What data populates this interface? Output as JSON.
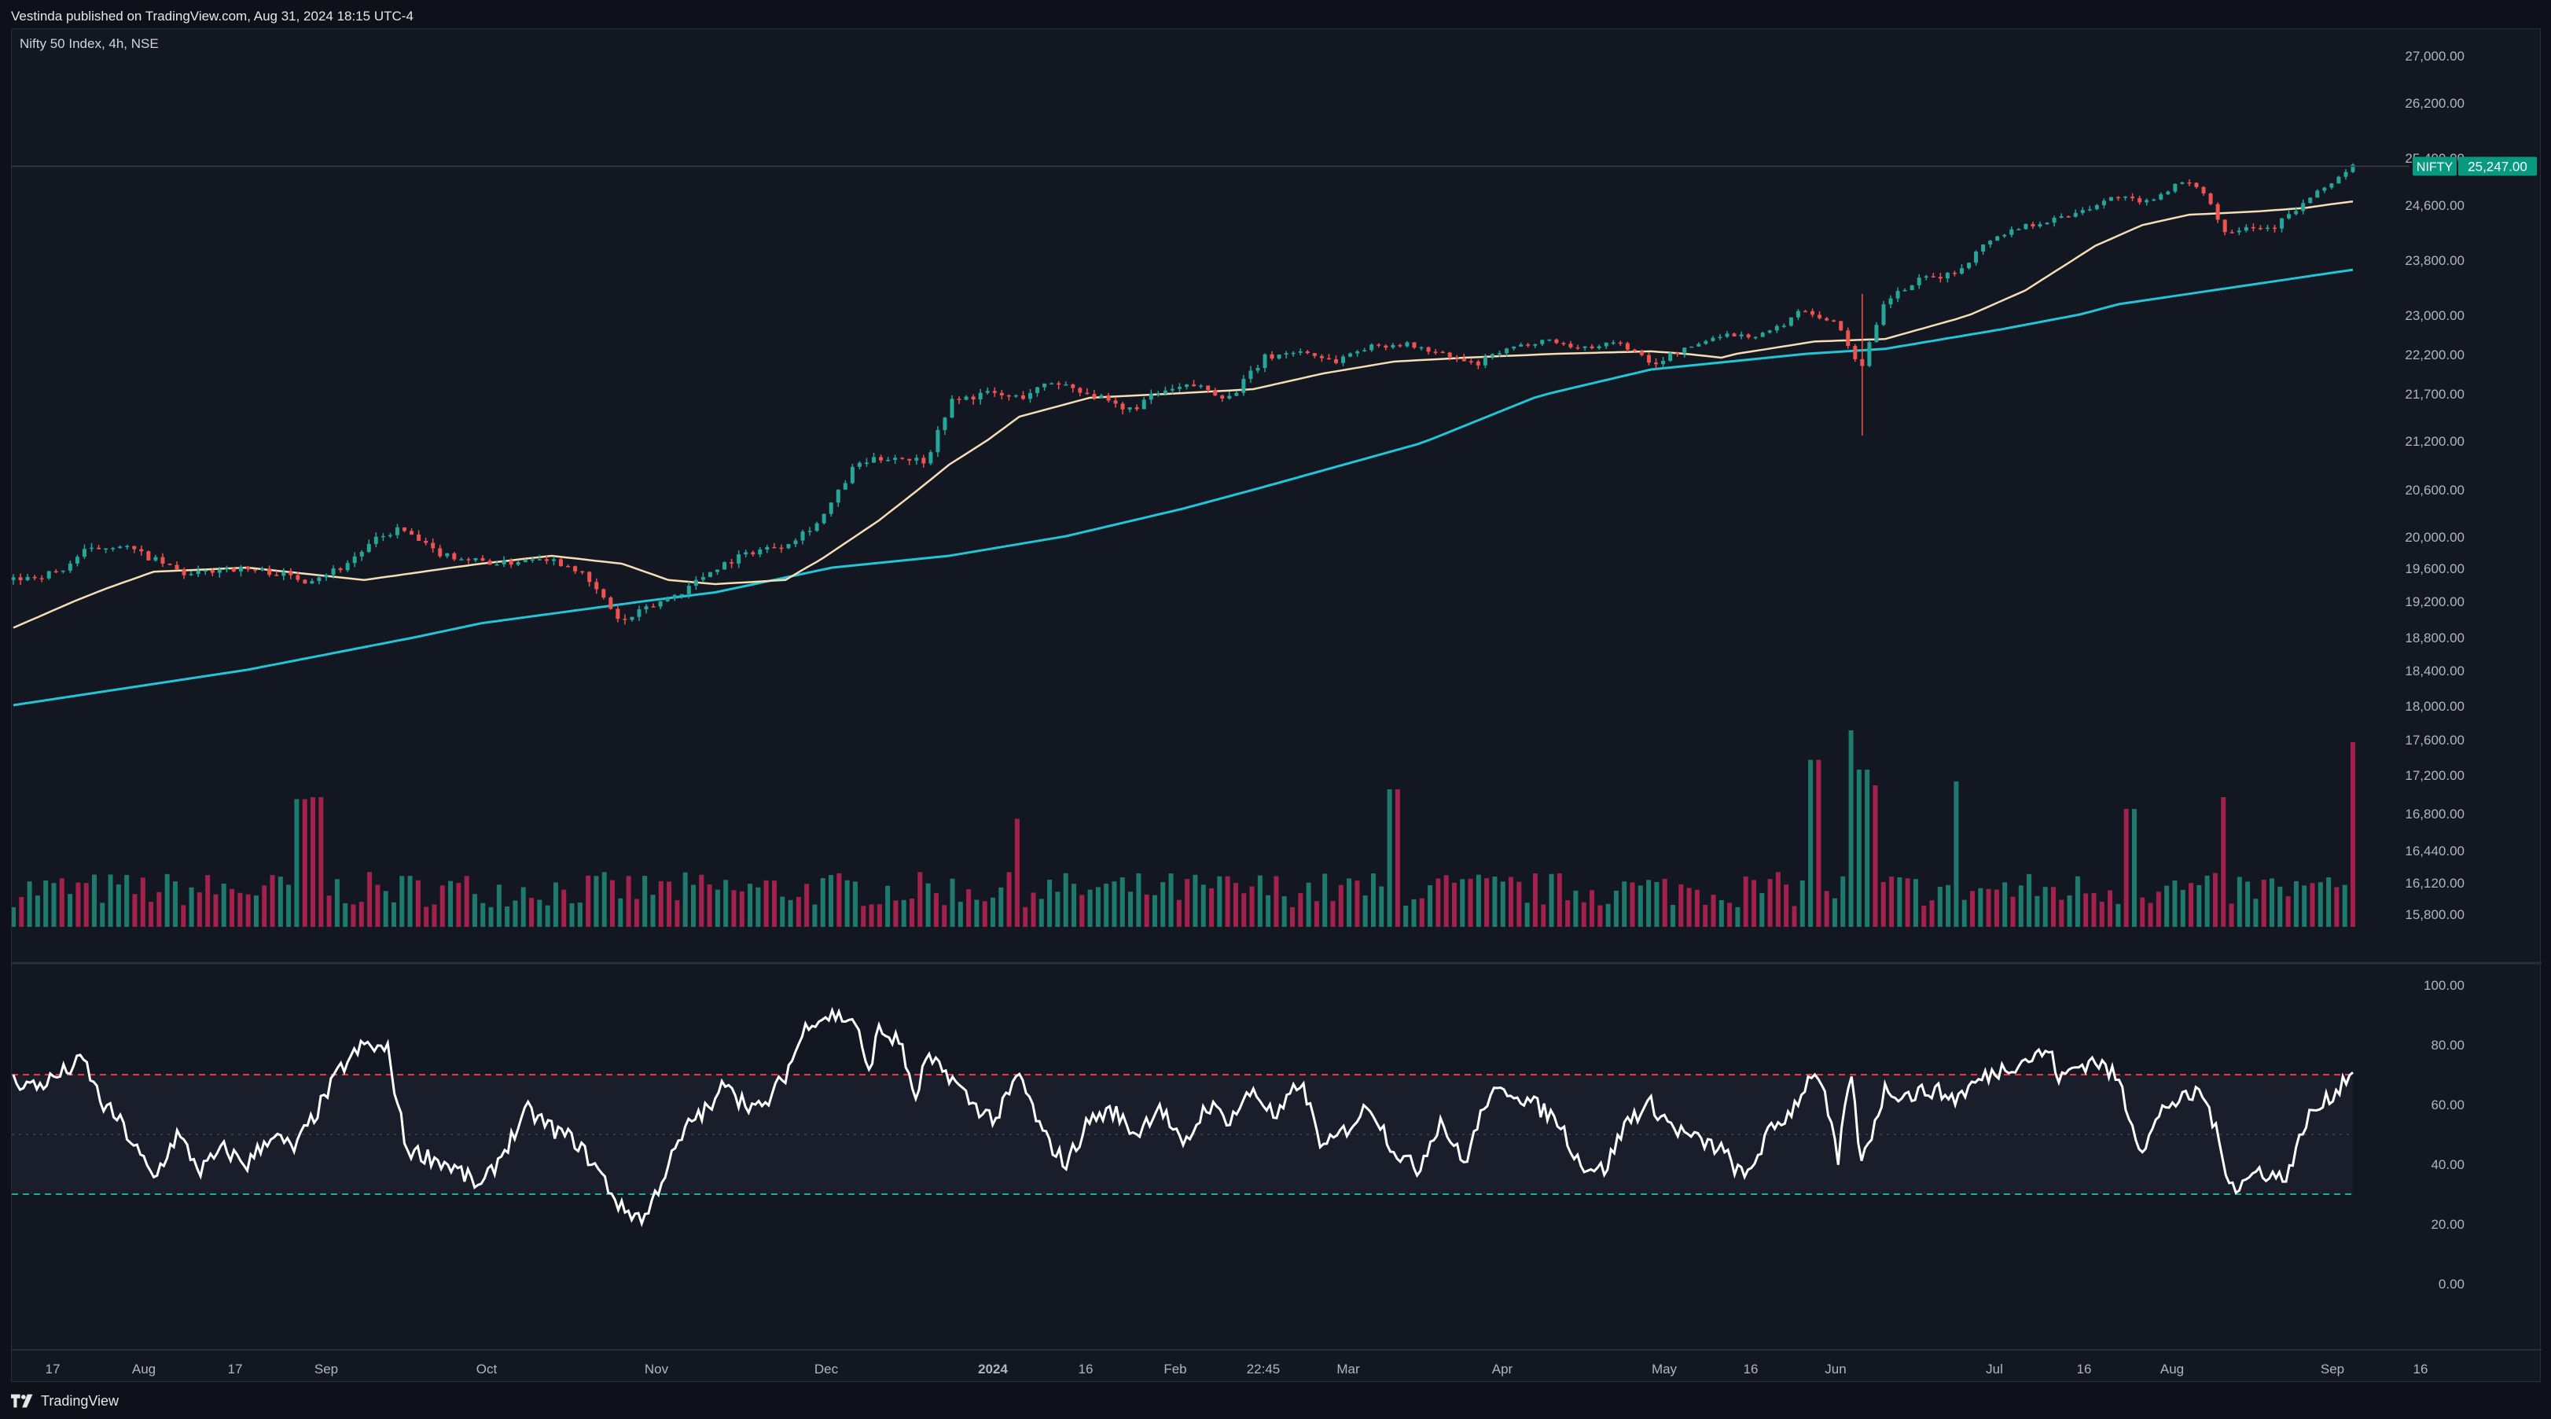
{
  "publish_info": "Vestinda published on TradingView.com, Aug 31, 2024 18:15 UTC-4",
  "brand": {
    "name": "TradingView",
    "logo_icon": "tradingview-logo-icon"
  },
  "colors": {
    "background": "#131722",
    "up": "#26a69a",
    "down": "#ef5350",
    "volume_up": "#1f7a6e",
    "volume_down": "#a3214a",
    "sma_fast": "#f5deb3",
    "sma_slow": "#22c5d6",
    "rsi_line": "#ffffff",
    "rsi_upper": "#f23645",
    "rsi_lower": "#22ab94",
    "price_tag": "#089981"
  },
  "chart_data": [
    {
      "type": "candlestick",
      "title": "Nifty 50 Index, 4h, NSE",
      "price_tag": {
        "label": "NIFTY",
        "value": "25,247.00"
      },
      "y_ticks": [
        "27,000.00",
        "26,200.00",
        "25,400.00",
        "24,600.00",
        "23,800.00",
        "23,000.00",
        "22,200.00",
        "21,700.00",
        "21,200.00",
        "20,600.00",
        "20,000.00",
        "19,600.00",
        "19,200.00",
        "18,800.00",
        "18,400.00",
        "18,000.00",
        "17,600.00",
        "17,200.00",
        "16,800.00",
        "16,440.00",
        "16,120.00",
        "15,800.00"
      ],
      "x_ticks": [
        "17",
        "Aug",
        "17",
        "Sep",
        "Oct",
        "Nov",
        "Dec",
        "2024",
        "16",
        "Feb",
        "22:45",
        "Mar",
        "Apr",
        "May",
        "16",
        "Jun",
        "Jul",
        "16",
        "Aug",
        "Sep",
        "16"
      ],
      "price_path": [
        [
          0,
          19450
        ],
        [
          0.02,
          19550
        ],
        [
          0.03,
          19800
        ],
        [
          0.045,
          19900
        ],
        [
          0.06,
          19700
        ],
        [
          0.075,
          19500
        ],
        [
          0.09,
          19600
        ],
        [
          0.11,
          19550
        ],
        [
          0.125,
          19450
        ],
        [
          0.14,
          19600
        ],
        [
          0.155,
          19950
        ],
        [
          0.165,
          20100
        ],
        [
          0.18,
          19800
        ],
        [
          0.195,
          19700
        ],
        [
          0.21,
          19650
        ],
        [
          0.225,
          19750
        ],
        [
          0.24,
          19600
        ],
        [
          0.25,
          19300
        ],
        [
          0.26,
          18950
        ],
        [
          0.27,
          19100
        ],
        [
          0.285,
          19300
        ],
        [
          0.3,
          19600
        ],
        [
          0.315,
          19800
        ],
        [
          0.33,
          19900
        ],
        [
          0.345,
          20200
        ],
        [
          0.36,
          20900
        ],
        [
          0.375,
          21000
        ],
        [
          0.39,
          20950
        ],
        [
          0.4,
          21600
        ],
        [
          0.415,
          21700
        ],
        [
          0.43,
          21650
        ],
        [
          0.445,
          21850
        ],
        [
          0.46,
          21700
        ],
        [
          0.475,
          21500
        ],
        [
          0.49,
          21700
        ],
        [
          0.505,
          21800
        ],
        [
          0.52,
          21650
        ],
        [
          0.535,
          22150
        ],
        [
          0.55,
          22250
        ],
        [
          0.565,
          22100
        ],
        [
          0.58,
          22350
        ],
        [
          0.595,
          22400
        ],
        [
          0.61,
          22200
        ],
        [
          0.625,
          22050
        ],
        [
          0.64,
          22300
        ],
        [
          0.655,
          22500
        ],
        [
          0.67,
          22300
        ],
        [
          0.685,
          22450
        ],
        [
          0.7,
          22050
        ],
        [
          0.715,
          22300
        ],
        [
          0.73,
          22600
        ],
        [
          0.745,
          22550
        ],
        [
          0.755,
          22750
        ],
        [
          0.765,
          23100
        ],
        [
          0.78,
          22800
        ],
        [
          0.785,
          22300
        ],
        [
          0.79,
          22000
        ],
        [
          0.8,
          23200
        ],
        [
          0.815,
          23500
        ],
        [
          0.83,
          23600
        ],
        [
          0.845,
          24100
        ],
        [
          0.86,
          24300
        ],
        [
          0.875,
          24400
        ],
        [
          0.89,
          24600
        ],
        [
          0.9,
          24750
        ],
        [
          0.91,
          24600
        ],
        [
          0.925,
          24950
        ],
        [
          0.935,
          24900
        ],
        [
          0.945,
          24200
        ],
        [
          0.955,
          24300
        ],
        [
          0.965,
          24250
        ],
        [
          0.975,
          24500
        ],
        [
          0.985,
          24800
        ],
        [
          0.995,
          25100
        ],
        [
          1.0,
          25247
        ]
      ],
      "spike": {
        "at": 0.79,
        "low": 21250,
        "high": 23300
      },
      "sma_fast": [
        [
          0,
          18900
        ],
        [
          0.04,
          19350
        ],
        [
          0.06,
          19550
        ],
        [
          0.1,
          19600
        ],
        [
          0.15,
          19450
        ],
        [
          0.2,
          19650
        ],
        [
          0.23,
          19750
        ],
        [
          0.26,
          19650
        ],
        [
          0.28,
          19450
        ],
        [
          0.3,
          19400
        ],
        [
          0.33,
          19450
        ],
        [
          0.345,
          19700
        ],
        [
          0.37,
          20200
        ],
        [
          0.4,
          20900
        ],
        [
          0.43,
          21450
        ],
        [
          0.46,
          21650
        ],
        [
          0.5,
          21700
        ],
        [
          0.53,
          21750
        ],
        [
          0.56,
          21950
        ],
        [
          0.59,
          22100
        ],
        [
          0.62,
          22150
        ],
        [
          0.66,
          22200
        ],
        [
          0.7,
          22250
        ],
        [
          0.73,
          22150
        ],
        [
          0.75,
          22300
        ],
        [
          0.77,
          22450
        ],
        [
          0.8,
          22500
        ],
        [
          0.83,
          22900
        ],
        [
          0.86,
          23350
        ],
        [
          0.89,
          24000
        ],
        [
          0.91,
          24300
        ],
        [
          0.93,
          24450
        ],
        [
          0.96,
          24500
        ],
        [
          0.98,
          24550
        ],
        [
          1.0,
          24650
        ]
      ],
      "sma_slow": [
        [
          0,
          18000
        ],
        [
          0.1,
          18400
        ],
        [
          0.2,
          18950
        ],
        [
          0.3,
          19300
        ],
        [
          0.35,
          19600
        ],
        [
          0.4,
          19750
        ],
        [
          0.45,
          20000
        ],
        [
          0.5,
          20350
        ],
        [
          0.55,
          20750
        ],
        [
          0.6,
          21150
        ],
        [
          0.65,
          21650
        ],
        [
          0.7,
          22000
        ],
        [
          0.75,
          22150
        ],
        [
          0.8,
          22300
        ],
        [
          0.85,
          22700
        ],
        [
          0.9,
          23150
        ],
        [
          0.95,
          23400
        ],
        [
          1.0,
          23650
        ]
      ]
    },
    {
      "type": "bar",
      "title": "Volume",
      "spikes": [
        [
          0.123,
          0.65
        ],
        [
          0.13,
          0.66
        ],
        [
          0.43,
          0.55
        ],
        [
          0.59,
          0.7
        ],
        [
          0.77,
          0.85
        ],
        [
          0.785,
          1.0
        ],
        [
          0.79,
          0.8
        ],
        [
          0.795,
          0.72
        ],
        [
          0.83,
          0.74
        ],
        [
          0.905,
          0.6
        ],
        [
          0.945,
          0.66
        ],
        [
          1.0,
          0.94
        ]
      ]
    },
    {
      "type": "line",
      "title": "RSI",
      "y_ticks": [
        "100.00",
        "80.00",
        "60.00",
        "40.00",
        "20.00",
        "0.00"
      ],
      "levels": {
        "upper": 70,
        "middle": 50,
        "lower": 30
      },
      "ylim": [
        0,
        100
      ],
      "points": [
        [
          0,
          68
        ],
        [
          0.01,
          66
        ],
        [
          0.02,
          70
        ],
        [
          0.03,
          75
        ],
        [
          0.038,
          60
        ],
        [
          0.045,
          55
        ],
        [
          0.06,
          35
        ],
        [
          0.07,
          50
        ],
        [
          0.08,
          38
        ],
        [
          0.09,
          45
        ],
        [
          0.1,
          40
        ],
        [
          0.11,
          50
        ],
        [
          0.12,
          45
        ],
        [
          0.13,
          58
        ],
        [
          0.14,
          72
        ],
        [
          0.15,
          80
        ],
        [
          0.16,
          78
        ],
        [
          0.168,
          45
        ],
        [
          0.18,
          42
        ],
        [
          0.19,
          38
        ],
        [
          0.2,
          32
        ],
        [
          0.21,
          45
        ],
        [
          0.22,
          58
        ],
        [
          0.23,
          52
        ],
        [
          0.24,
          48
        ],
        [
          0.25,
          38
        ],
        [
          0.26,
          25
        ],
        [
          0.27,
          22
        ],
        [
          0.28,
          40
        ],
        [
          0.29,
          55
        ],
        [
          0.3,
          60
        ],
        [
          0.305,
          70
        ],
        [
          0.31,
          62
        ],
        [
          0.32,
          58
        ],
        [
          0.33,
          70
        ],
        [
          0.34,
          88
        ],
        [
          0.35,
          90
        ],
        [
          0.36,
          88
        ],
        [
          0.365,
          70
        ],
        [
          0.37,
          85
        ],
        [
          0.38,
          80
        ],
        [
          0.385,
          60
        ],
        [
          0.39,
          75
        ],
        [
          0.4,
          70
        ],
        [
          0.41,
          60
        ],
        [
          0.42,
          55
        ],
        [
          0.43,
          70
        ],
        [
          0.44,
          50
        ],
        [
          0.45,
          40
        ],
        [
          0.46,
          55
        ],
        [
          0.47,
          58
        ],
        [
          0.48,
          50
        ],
        [
          0.49,
          60
        ],
        [
          0.5,
          45
        ],
        [
          0.51,
          60
        ],
        [
          0.52,
          55
        ],
        [
          0.53,
          65
        ],
        [
          0.54,
          55
        ],
        [
          0.55,
          68
        ],
        [
          0.56,
          45
        ],
        [
          0.57,
          52
        ],
        [
          0.58,
          60
        ],
        [
          0.59,
          45
        ],
        [
          0.6,
          38
        ],
        [
          0.61,
          55
        ],
        [
          0.62,
          40
        ],
        [
          0.63,
          62
        ],
        [
          0.64,
          65
        ],
        [
          0.65,
          60
        ],
        [
          0.66,
          55
        ],
        [
          0.67,
          40
        ],
        [
          0.68,
          38
        ],
        [
          0.69,
          55
        ],
        [
          0.7,
          60
        ],
        [
          0.71,
          52
        ],
        [
          0.72,
          48
        ],
        [
          0.73,
          45
        ],
        [
          0.74,
          35
        ],
        [
          0.75,
          50
        ],
        [
          0.76,
          58
        ],
        [
          0.77,
          72
        ],
        [
          0.775,
          60
        ],
        [
          0.78,
          40
        ],
        [
          0.785,
          72
        ],
        [
          0.79,
          40
        ],
        [
          0.8,
          65
        ],
        [
          0.81,
          63
        ],
        [
          0.82,
          65
        ],
        [
          0.83,
          62
        ],
        [
          0.84,
          68
        ],
        [
          0.85,
          72
        ],
        [
          0.86,
          75
        ],
        [
          0.87,
          78
        ],
        [
          0.875,
          68
        ],
        [
          0.88,
          72
        ],
        [
          0.89,
          75
        ],
        [
          0.9,
          68
        ],
        [
          0.905,
          55
        ],
        [
          0.91,
          45
        ],
        [
          0.92,
          60
        ],
        [
          0.93,
          62
        ],
        [
          0.935,
          65
        ],
        [
          0.94,
          55
        ],
        [
          0.945,
          40
        ],
        [
          0.95,
          32
        ],
        [
          0.96,
          38
        ],
        [
          0.97,
          35
        ],
        [
          0.975,
          42
        ],
        [
          0.98,
          55
        ],
        [
          0.99,
          62
        ],
        [
          1.0,
          72
        ]
      ]
    }
  ]
}
